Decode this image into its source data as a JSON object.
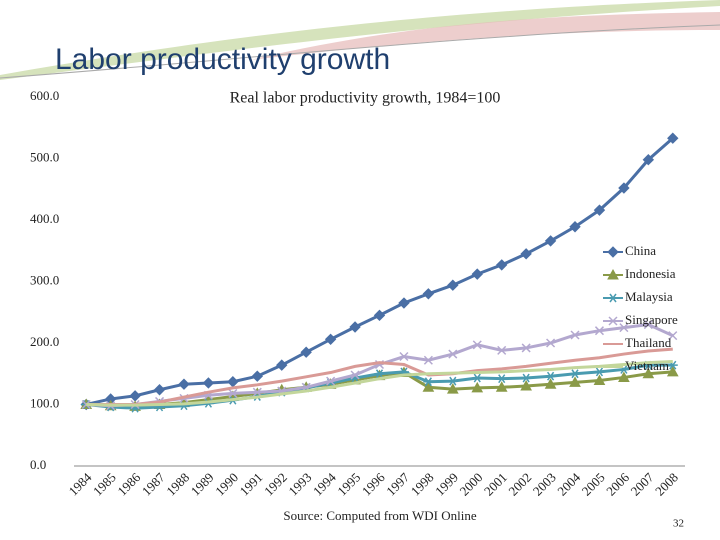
{
  "slide": {
    "title": "Labor productivity growth",
    "page_number": "32"
  },
  "chart_data": {
    "type": "line",
    "title": "Real labor productivity growth, 1984=100",
    "source": "Source: Computed from WDI Online",
    "categories": [
      "1984",
      "1985",
      "1986",
      "1987",
      "1988",
      "1989",
      "1990",
      "1991",
      "1992",
      "1993",
      "1994",
      "1995",
      "1996",
      "1997",
      "1998",
      "1999",
      "2000",
      "2001",
      "2002",
      "2003",
      "2004",
      "2005",
      "2006",
      "2007",
      "2008"
    ],
    "ylim": [
      0,
      600
    ],
    "yticks": [
      {
        "value": 0,
        "label": "0.0"
      },
      {
        "value": 100,
        "label": "100.0"
      },
      {
        "value": 200,
        "label": "200.0"
      },
      {
        "value": 300,
        "label": "300.0"
      },
      {
        "value": 400,
        "label": "400.0"
      },
      {
        "value": 500,
        "label": "500.0"
      },
      {
        "value": 600,
        "label": "600.0"
      }
    ],
    "grid": false,
    "legend": "right",
    "series": [
      {
        "name": "China",
        "color": "#4a6fa5",
        "marker": "diamond",
        "values": [
          100,
          109,
          114,
          124,
          133,
          135,
          137,
          146,
          164,
          185,
          206,
          226,
          245,
          265,
          280,
          294,
          312,
          327,
          345,
          366,
          389,
          416,
          452,
          498,
          533
        ]
      },
      {
        "name": "Indonesia",
        "color": "#8a9a48",
        "marker": "triangle",
        "values": [
          100,
          98,
          97,
          100,
          103,
          108,
          113,
          118,
          124,
          128,
          133,
          140,
          147,
          152,
          128,
          125,
          127,
          128,
          130,
          133,
          136,
          139,
          144,
          150,
          153
        ]
      },
      {
        "name": "Malaysia",
        "color": "#4a9bb0",
        "marker": "star",
        "values": [
          100,
          96,
          94,
          96,
          98,
          102,
          107,
          113,
          120,
          127,
          135,
          143,
          150,
          153,
          137,
          138,
          143,
          142,
          143,
          146,
          150,
          153,
          157,
          164,
          164
        ]
      },
      {
        "name": "Singapore",
        "color": "#b3a8cf",
        "marker": "x",
        "values": [
          100,
          98,
          100,
          105,
          110,
          115,
          118,
          120,
          122,
          128,
          138,
          148,
          165,
          178,
          172,
          182,
          197,
          188,
          192,
          200,
          213,
          220,
          225,
          230,
          212
        ]
      },
      {
        "name": "Thailand",
        "color": "#d99a96",
        "marker": "none",
        "values": [
          100,
          100,
          100,
          104,
          112,
          120,
          127,
          132,
          138,
          145,
          152,
          162,
          168,
          165,
          148,
          150,
          155,
          158,
          162,
          167,
          172,
          176,
          182,
          187,
          190
        ]
      },
      {
        "name": "Vietnam",
        "color": "#c3d69b",
        "marker": "none",
        "values": [
          100,
          99,
          99,
          100,
          101,
          104,
          108,
          112,
          117,
          122,
          128,
          135,
          142,
          148,
          150,
          151,
          152,
          153,
          155,
          157,
          160,
          162,
          165,
          168,
          170
        ]
      }
    ]
  }
}
